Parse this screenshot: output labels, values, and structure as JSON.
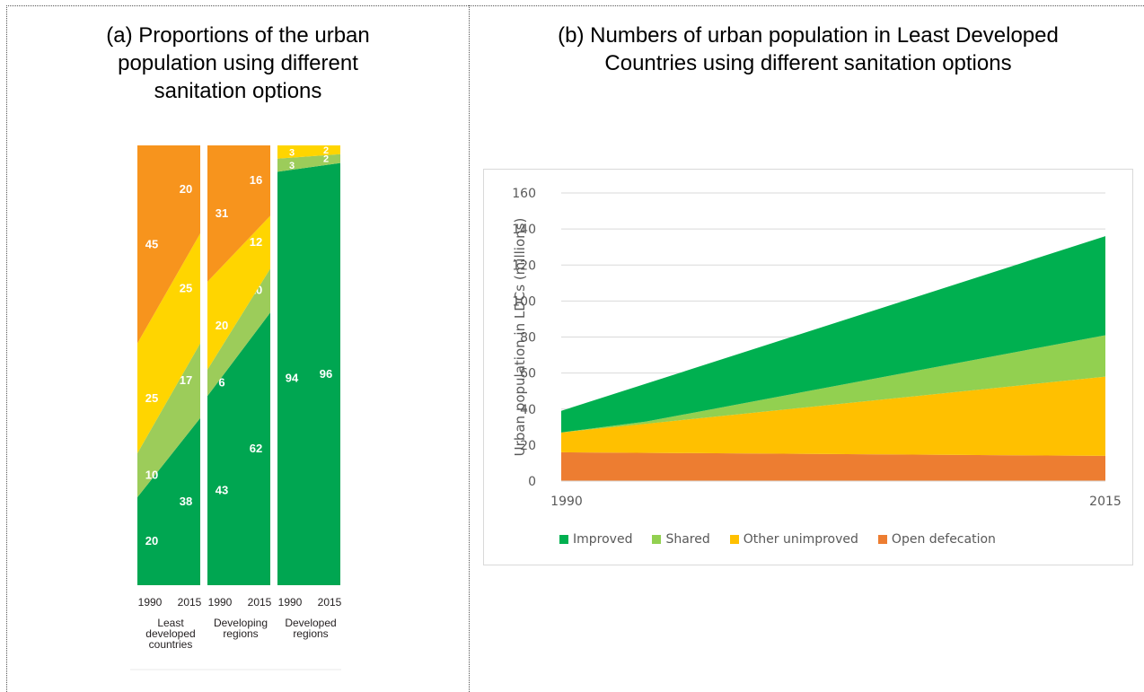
{
  "panel_a": {
    "title_lines": [
      "(a)  Proportions of the urban",
      "population using different",
      "sanitation options"
    ]
  },
  "panel_b": {
    "title_lines": [
      "(b) Numbers of urban population in Least Developed",
      "Countries using different sanitation options"
    ]
  },
  "colors": {
    "improved_a": "#00a651",
    "shared_a": "#9ccc5a",
    "other_a": "#ffd500",
    "open_a": "#f7941d",
    "improved_b": "#00b050",
    "shared_b": "#92d050",
    "other_b": "#ffc000",
    "open_b": "#ed7d31"
  },
  "chart_data": [
    {
      "type": "area",
      "title": "(a)  Proportions of the urban population using different sanitation options",
      "groups": [
        {
          "label_lines": [
            "Least",
            "developed",
            "countries"
          ],
          "years": [
            "1990",
            "2015"
          ],
          "improved": [
            20,
            38
          ],
          "shared": [
            10,
            17
          ],
          "other_unimproved": [
            25,
            25
          ],
          "open_defecation": [
            45,
            20
          ]
        },
        {
          "label_lines": [
            "Developing",
            "regions"
          ],
          "years": [
            "1990",
            "2015"
          ],
          "improved": [
            43,
            62
          ],
          "shared": [
            6,
            10
          ],
          "other_unimproved": [
            20,
            12
          ],
          "open_defecation": [
            31,
            16
          ]
        },
        {
          "label_lines": [
            "Developed",
            "regions"
          ],
          "years": [
            "1990",
            "2015"
          ],
          "improved": [
            94,
            96
          ],
          "shared": [
            3,
            2
          ],
          "other_unimproved": [
            3,
            2
          ],
          "open_defecation": [
            0,
            0
          ]
        }
      ],
      "ylim": [
        0,
        100
      ]
    },
    {
      "type": "area",
      "title": "(b) Numbers of urban population in Least Developed Countries using different sanitation options",
      "x": [
        "1990",
        "2015"
      ],
      "ylabel": "Urban population in LDCs (millions)",
      "ylim": [
        0,
        160
      ],
      "yticks": [
        0,
        20,
        40,
        60,
        80,
        100,
        120,
        140,
        160
      ],
      "grid": true,
      "legend_position": "bottom",
      "series": [
        {
          "name": "Open defecation",
          "values": [
            16,
            14
          ]
        },
        {
          "name": "Other unimproved",
          "values": [
            27,
            58
          ]
        },
        {
          "name": "Shared",
          "values": [
            27,
            81
          ]
        },
        {
          "name": "Improved",
          "values": [
            39,
            136
          ]
        }
      ],
      "kink_at": {
        "x_fraction": 0.155,
        "shared_top": 33
      },
      "legend": [
        "Improved",
        "Shared",
        "Other unimproved",
        "Open defecation"
      ]
    }
  ]
}
